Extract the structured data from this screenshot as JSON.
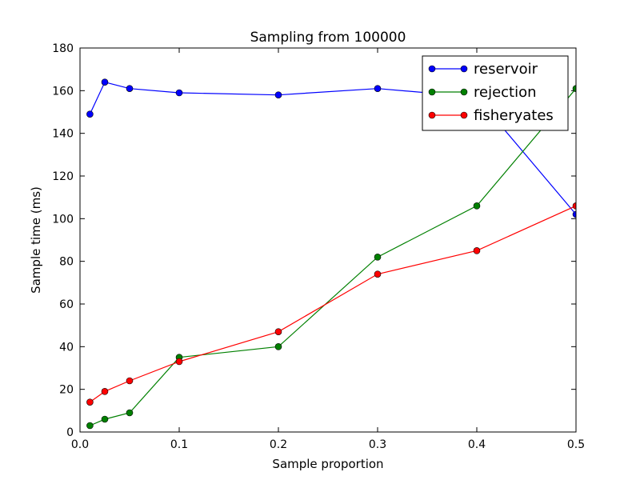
{
  "chart_data": {
    "type": "line",
    "title": "Sampling from 100000",
    "xlabel": "Sample proportion",
    "ylabel": "Sample time (ms)",
    "xlim": [
      0,
      0.5
    ],
    "ylim": [
      0,
      180
    ],
    "xticks": [
      0,
      0.1,
      0.2,
      0.3,
      0.4,
      0.5
    ],
    "xtick_labels": [
      "0.0",
      "0.1",
      "0.2",
      "0.3",
      "0.4",
      "0.5"
    ],
    "yticks": [
      0,
      20,
      40,
      60,
      80,
      100,
      120,
      140,
      160,
      180
    ],
    "ytick_labels": [
      "0",
      "20",
      "40",
      "60",
      "80",
      "100",
      "120",
      "140",
      "160",
      "180"
    ],
    "grid": false,
    "legend_position": "top-right",
    "x": [
      0.01,
      0.025,
      0.05,
      0.1,
      0.2,
      0.3,
      0.4,
      0.5
    ],
    "series": [
      {
        "name": "reservoir",
        "color": "#0000ff",
        "values": [
          149,
          164,
          161,
          159,
          158,
          161,
          157,
          102
        ]
      },
      {
        "name": "rejection",
        "color": "#008000",
        "values": [
          3,
          6,
          9,
          35,
          40,
          82,
          106,
          161
        ]
      },
      {
        "name": "fisheryates",
        "color": "#ff0000",
        "values": [
          14,
          19,
          24,
          33,
          47,
          74,
          85,
          106
        ]
      }
    ]
  }
}
